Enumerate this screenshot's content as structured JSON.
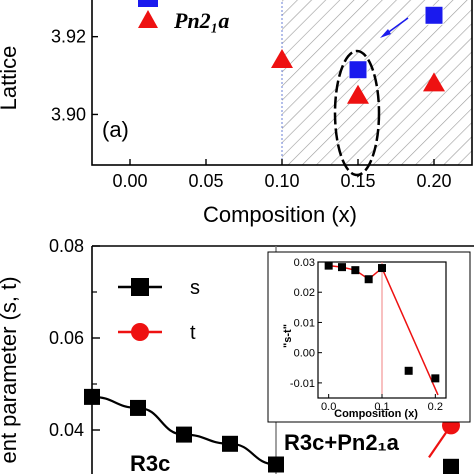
{
  "chart_data": [
    {
      "type": "scatter",
      "panel_label": "(a)",
      "xlabel": "Composition (x)",
      "ylabel": "Lattice",
      "xlim": [
        -0.025,
        0.225
      ],
      "ylim": [
        3.887,
        3.932
      ],
      "x_ticks": [
        "0.00",
        "0.05",
        "0.10",
        "0.15",
        "0.20"
      ],
      "y_ticks": [
        "3.90",
        "3.92"
      ],
      "legend_text": "Pn2₁a",
      "hatched_region_x_from": 0.1,
      "series": [
        {
          "marker": "square",
          "color": "#1a1aee",
          "points": [
            {
              "x": 0.15,
              "y": 3.9115
            },
            {
              "x": 0.2,
              "y": 3.9255
            }
          ]
        },
        {
          "name": "Pn2₁a",
          "marker": "triangle",
          "color": "#ee1111",
          "points": [
            {
              "x": 0.1,
              "y": 3.914
            },
            {
              "x": 0.15,
              "y": 3.9048
            },
            {
              "x": 0.2,
              "y": 3.908
            }
          ]
        }
      ]
    },
    {
      "type": "line",
      "xlabel": "",
      "ylabel": "ent parameter (s, t)",
      "ylim": [
        0.03,
        0.08
      ],
      "y_ticks": [
        "0.04",
        "0.06",
        "0.08"
      ],
      "phase_labels": [
        "R3c",
        "R3c+Pn2₁a"
      ],
      "series": [
        {
          "name": "s",
          "color": "#000000",
          "marker": "square",
          "x": [
            0.0,
            0.025,
            0.05,
            0.075,
            0.1
          ],
          "values": [
            0.0472,
            0.0448,
            0.039,
            0.037,
            0.0325
          ],
          "errors": [
            0.0006,
            0.0006,
            0.0012,
            0.0012,
            0.0012
          ]
        },
        {
          "name": "t",
          "color": "#ee1111",
          "marker": "circle",
          "x": [
            0.2
          ],
          "values": [
            0.041
          ],
          "errors": [
            0.0008
          ]
        },
        {
          "color": "#000000",
          "marker": "square",
          "x": [
            0.2
          ],
          "values": [
            0.032
          ],
          "errors": [
            0.0008
          ]
        }
      ],
      "inset": {
        "type": "scatter",
        "xlabel": "Composition (x)",
        "ylabel": "\"s-t\"",
        "xlim": [
          -0.02,
          0.22
        ],
        "ylim": [
          -0.015,
          0.03
        ],
        "x_ticks": [
          "0.0",
          "0.1",
          "0.2"
        ],
        "y_ticks": [
          "0.03",
          "0.02",
          "0.01",
          "0.00",
          "-0.01"
        ],
        "points": [
          {
            "x": 0.0,
            "y": 0.0288
          },
          {
            "x": 0.025,
            "y": 0.0283
          },
          {
            "x": 0.05,
            "y": 0.0273
          },
          {
            "x": 0.075,
            "y": 0.0243
          },
          {
            "x": 0.1,
            "y": 0.028
          },
          {
            "x": 0.15,
            "y": -0.006
          },
          {
            "x": 0.2,
            "y": -0.0085
          }
        ],
        "fit_line_color": "#ee1111"
      }
    }
  ]
}
